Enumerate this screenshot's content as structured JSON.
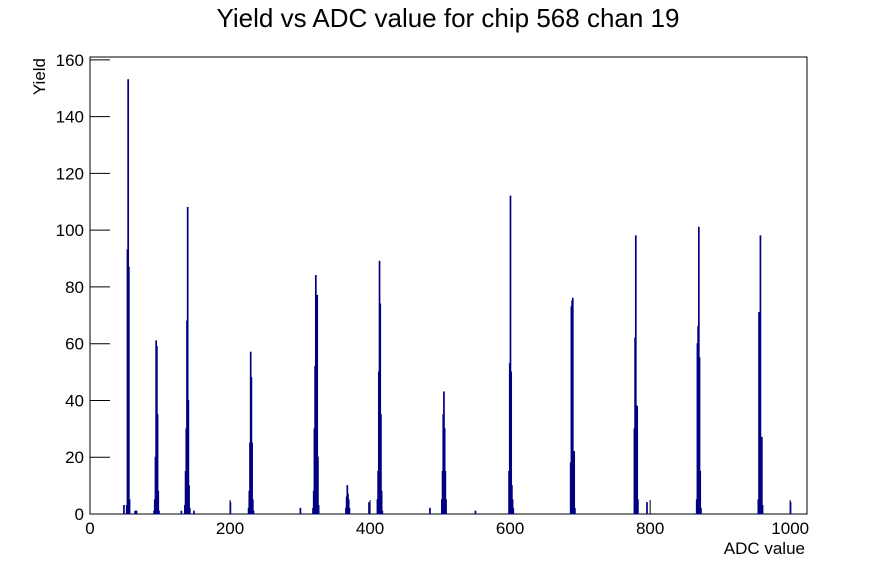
{
  "chart_data": {
    "type": "histogram",
    "title": "Yield vs ADC value for chip 568 chan 19",
    "x_label": "ADC value",
    "y_label": "Yield",
    "color": "#000080",
    "bins": [
      0,
      48,
      49,
      52,
      53,
      54,
      55,
      56,
      57,
      64,
      65,
      66,
      67,
      91,
      92,
      93,
      94,
      95,
      96,
      97,
      98,
      99,
      130,
      131,
      135,
      136,
      137,
      138,
      139,
      140,
      141,
      142,
      143,
      148,
      149,
      200,
      201,
      226,
      227,
      228,
      229,
      230,
      231,
      232,
      233,
      234,
      300,
      301,
      318,
      319,
      320,
      321,
      322,
      323,
      324,
      325,
      326,
      327,
      365,
      366,
      367,
      368,
      369,
      370,
      371,
      398,
      399,
      410,
      411,
      412,
      413,
      414,
      415,
      416,
      417,
      418,
      485,
      486,
      502,
      503,
      504,
      505,
      506,
      507,
      508,
      509,
      550,
      551,
      598,
      599,
      600,
      601,
      602,
      603,
      604,
      605,
      686,
      687,
      688,
      689,
      690,
      691,
      692,
      693,
      777,
      778,
      779,
      780,
      781,
      782,
      783,
      795,
      796,
      866,
      867,
      868,
      869,
      870,
      871,
      872,
      873,
      954,
      955,
      956,
      957,
      958,
      959,
      960,
      961,
      1000,
      1001,
      1024
    ],
    "values": [
      0,
      3,
      0,
      3,
      93,
      153,
      87,
      5,
      0,
      1,
      0,
      1,
      0,
      1,
      5,
      20,
      61,
      59,
      35,
      8,
      1,
      0,
      1,
      0,
      3,
      15,
      30,
      68,
      108,
      40,
      10,
      2,
      0,
      1,
      0,
      4,
      0,
      2,
      8,
      25,
      57,
      48,
      25,
      5,
      1,
      0,
      2,
      0,
      2,
      8,
      30,
      52,
      84,
      58,
      77,
      20,
      3,
      0,
      2,
      6,
      10,
      7,
      5,
      2,
      0,
      4,
      0,
      5,
      15,
      50,
      89,
      74,
      35,
      8,
      1,
      0,
      2,
      0,
      5,
      15,
      35,
      43,
      30,
      15,
      5,
      0,
      1,
      0,
      15,
      53,
      112,
      50,
      10,
      5,
      2,
      0,
      18,
      73,
      75,
      76,
      20,
      22,
      2,
      0,
      30,
      62,
      98,
      29,
      38,
      5,
      0,
      4,
      0,
      5,
      60,
      66,
      101,
      55,
      15,
      2,
      0,
      5,
      71,
      65,
      98,
      15,
      27,
      3,
      0,
      4,
      0
    ],
    "xlim": [
      0,
      1024
    ],
    "ylim": [
      0,
      161
    ],
    "xticks": [
      0,
      200,
      400,
      600,
      800,
      1000
    ],
    "yticks": [
      0,
      20,
      40,
      60,
      80,
      100,
      120,
      140,
      160
    ]
  }
}
